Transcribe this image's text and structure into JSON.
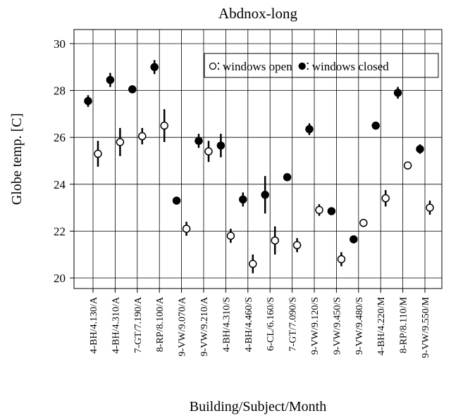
{
  "chart_data": {
    "type": "dot_errorbar",
    "title": "Abdnox-long",
    "x_label": "Building/Subject/Month",
    "y_label": "Globe temp. [C]",
    "categories": [
      "4-BH/4.130/A",
      "4-BH/4.310/A",
      "7-GT/7.190/A",
      "8-RP/8.100/A",
      "9-VW/9.070/A",
      "9-VW/9.210/A",
      "4-BH/4.310/S",
      "4-BH/4.460/S",
      "6-CL/6.160/S",
      "7-GT/7.090/S",
      "9-VW/9.120/S",
      "9-VW/9.450/S",
      "9-VW/9.480/S",
      "4-BH/4.220/M",
      "8-RP/8.110/M",
      "9-VW/9.550/M"
    ],
    "series": [
      {
        "name": "windows closed",
        "color": "#000000",
        "filled": true,
        "values": [
          27.55,
          28.45,
          28.05,
          29.0,
          23.3,
          25.85,
          25.65,
          23.35,
          23.55,
          24.3,
          26.35,
          22.85,
          21.65,
          26.5,
          27.9,
          25.5
        ],
        "errors": [
          0.25,
          0.3,
          0.15,
          0.3,
          0.1,
          0.3,
          0.5,
          0.3,
          0.8,
          0.1,
          0.25,
          0.1,
          0.1,
          0.1,
          0.25,
          0.2
        ]
      },
      {
        "name": "windows open",
        "color": "#000000",
        "filled": false,
        "values": [
          25.3,
          25.8,
          26.05,
          26.5,
          22.1,
          25.4,
          21.8,
          20.6,
          21.6,
          21.4,
          22.9,
          20.8,
          22.35,
          23.4,
          24.8,
          23.0
        ],
        "errors": [
          0.55,
          0.6,
          0.35,
          0.7,
          0.3,
          0.45,
          0.3,
          0.4,
          0.6,
          0.3,
          0.25,
          0.3,
          0.1,
          0.35,
          0.1,
          0.3
        ]
      }
    ],
    "ylim": [
      19.55,
      30.6
    ],
    "yticks": [
      20,
      22,
      24,
      26,
      28,
      30
    ],
    "grid": true,
    "legend": "upper right"
  }
}
